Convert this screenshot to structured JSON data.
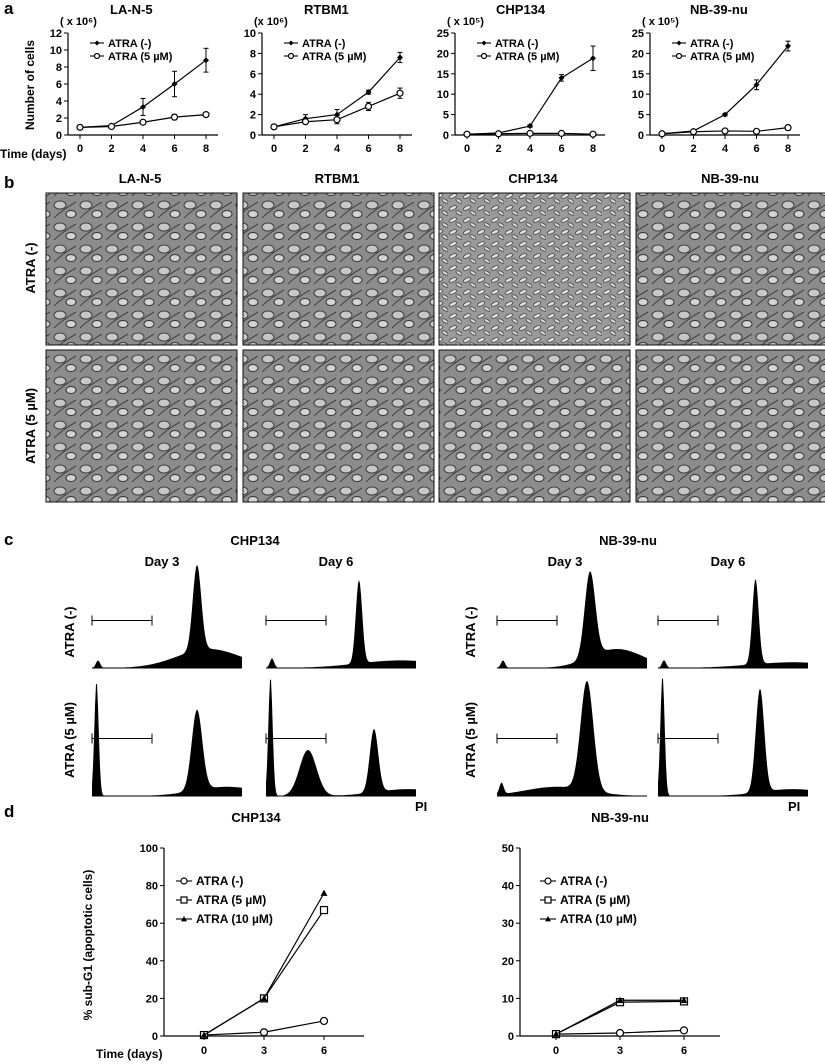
{
  "panel_letters": [
    "a",
    "b",
    "c",
    "d"
  ],
  "panel_a": {
    "ylabel": "Number of cells",
    "xlabel": "Time (days)",
    "legend": [
      "ATRA (-)",
      "ATRA (5 µM)"
    ]
  },
  "panel_b": {
    "columns": [
      "LA-N-5",
      "RTBM1",
      "CHP134",
      "NB-39-nu"
    ],
    "rows": [
      "ATRA (-)",
      "ATRA (5 µM)"
    ]
  },
  "panel_c": {
    "groups": [
      "CHP134",
      "NB-39-nu"
    ],
    "days": [
      "Day 3",
      "Day 6"
    ],
    "rows": [
      "ATRA (-)",
      "ATRA (5 µM)"
    ],
    "axis_label": "PI"
  },
  "panel_d": {
    "ylabel": "% sub-G1 (apoptotic cells)",
    "xlabel": "Time (days)",
    "legend": [
      "ATRA (-)",
      "ATRA (5 µM)",
      "ATRA (10 µM)"
    ]
  },
  "colors": {
    "ink": "#000000",
    "background": "#ffffff",
    "micrograph": "#8a8a8a"
  },
  "chart_data": [
    {
      "type": "line",
      "title": "LA-N-5",
      "unit_label": "( x 10⁶)",
      "x": [
        0,
        2,
        4,
        6,
        8
      ],
      "ylim": [
        0,
        12
      ],
      "yticks": [
        0,
        2,
        4,
        6,
        8,
        10,
        12
      ],
      "series": [
        {
          "name": "ATRA (-)",
          "marker": "diamond",
          "values": [
            0.9,
            1.1,
            3.3,
            6.0,
            8.8
          ],
          "err": [
            0.1,
            0.1,
            1.0,
            1.5,
            1.4
          ]
        },
        {
          "name": "ATRA (5 µM)",
          "marker": "circle",
          "values": [
            0.9,
            1.0,
            1.5,
            2.1,
            2.4
          ],
          "err": [
            0.05,
            0.05,
            0.1,
            0.3,
            0.1
          ]
        }
      ]
    },
    {
      "type": "line",
      "title": "RTBM1",
      "unit_label": "(x 10⁶)",
      "x": [
        0,
        2,
        4,
        6,
        8
      ],
      "ylim": [
        0,
        10
      ],
      "yticks": [
        0,
        2,
        4,
        6,
        8,
        10
      ],
      "series": [
        {
          "name": "ATRA (-)",
          "marker": "diamond",
          "values": [
            0.8,
            1.6,
            2.0,
            4.2,
            7.6
          ],
          "err": [
            0.1,
            0.4,
            0.5,
            0.2,
            0.5
          ]
        },
        {
          "name": "ATRA (5 µM)",
          "marker": "circle",
          "values": [
            0.8,
            1.3,
            1.5,
            2.8,
            4.1
          ],
          "err": [
            0.1,
            0.2,
            0.4,
            0.4,
            0.5
          ]
        }
      ]
    },
    {
      "type": "line",
      "title": "CHP134",
      "unit_label": "( x 10⁵)",
      "x": [
        0,
        2,
        4,
        6,
        8
      ],
      "ylim": [
        0,
        25
      ],
      "yticks": [
        0,
        5,
        10,
        15,
        20,
        25
      ],
      "series": [
        {
          "name": "ATRA (-)",
          "marker": "diamond",
          "values": [
            0.2,
            0.5,
            2.2,
            14.0,
            18.8
          ],
          "err": [
            0.05,
            0.1,
            0.3,
            0.8,
            3.0
          ]
        },
        {
          "name": "ATRA (5 µM)",
          "marker": "circle",
          "values": [
            0.2,
            0.3,
            0.4,
            0.4,
            0.2
          ],
          "err": [
            0.05,
            0.05,
            0.05,
            0.05,
            0.05
          ]
        }
      ]
    },
    {
      "type": "line",
      "title": "NB-39-nu",
      "unit_label": "( x 10⁵)",
      "x": [
        0,
        2,
        4,
        6,
        8
      ],
      "ylim": [
        0,
        25
      ],
      "yticks": [
        0,
        5,
        10,
        15,
        20,
        25
      ],
      "series": [
        {
          "name": "ATRA (-)",
          "marker": "diamond",
          "values": [
            0.3,
            1.0,
            5.0,
            12.3,
            21.8
          ],
          "err": [
            0.05,
            0.1,
            0.3,
            1.2,
            1.2
          ]
        },
        {
          "name": "ATRA (5 µM)",
          "marker": "circle",
          "values": [
            0.3,
            0.8,
            1.0,
            0.9,
            1.8
          ],
          "err": [
            0.05,
            0.1,
            0.1,
            0.2,
            0.6
          ]
        }
      ]
    },
    {
      "type": "line",
      "title": "CHP134",
      "x": [
        0,
        3,
        6
      ],
      "ylim": [
        0,
        100
      ],
      "yticks": [
        0,
        20,
        40,
        60,
        80,
        100
      ],
      "series": [
        {
          "name": "ATRA (-)",
          "marker": "circle",
          "values": [
            0.5,
            2,
            8
          ]
        },
        {
          "name": "ATRA (5 µM)",
          "marker": "square",
          "values": [
            0.5,
            20,
            67
          ]
        },
        {
          "name": "ATRA (10 µM)",
          "marker": "triangle",
          "values": [
            0.5,
            20,
            76
          ]
        }
      ]
    },
    {
      "type": "line",
      "title": "NB-39-nu",
      "x": [
        0,
        3,
        6
      ],
      "ylim": [
        0,
        50
      ],
      "yticks": [
        0,
        10,
        20,
        30,
        40,
        50
      ],
      "series": [
        {
          "name": "ATRA (-)",
          "marker": "circle",
          "values": [
            0.5,
            0.8,
            1.5
          ]
        },
        {
          "name": "ATRA (5 µM)",
          "marker": "square",
          "values": [
            0.5,
            9.0,
            9.2
          ]
        },
        {
          "name": "ATRA (10 µM)",
          "marker": "triangle",
          "values": [
            0.5,
            9.5,
            9.5
          ]
        }
      ]
    }
  ]
}
